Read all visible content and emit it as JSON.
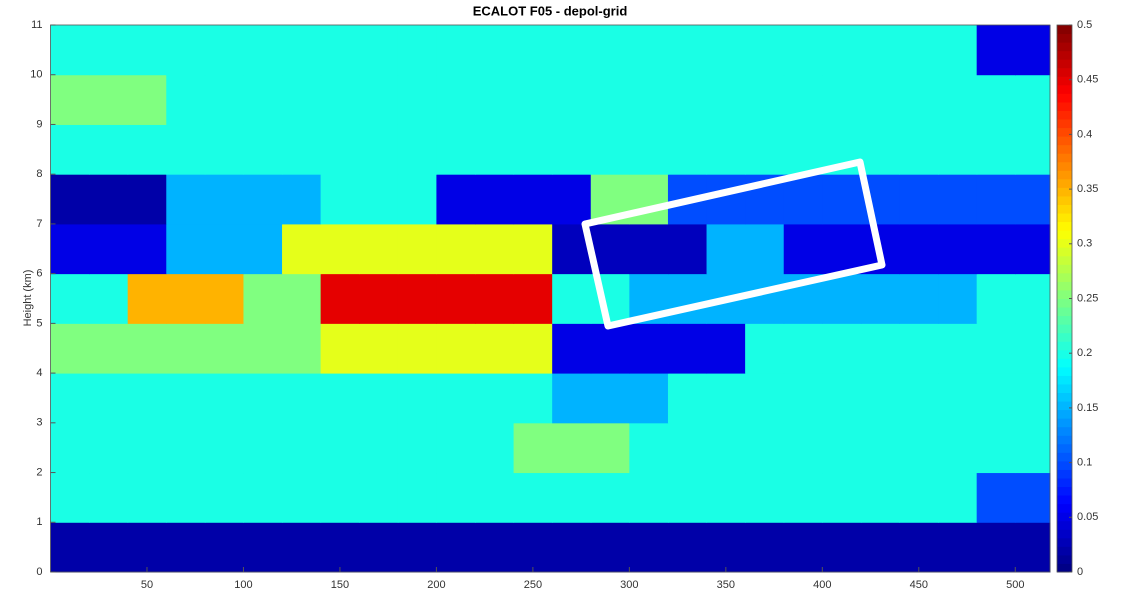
{
  "chart_data": {
    "type": "heatmap",
    "title": "ECALOT F05 - depol-grid",
    "y_label": "Height (km)",
    "colormap": "jet",
    "xbins": [
      0,
      20,
      40,
      60,
      80,
      100,
      120,
      140,
      160,
      180,
      200,
      220,
      240,
      260,
      280,
      300,
      320,
      340,
      360,
      380,
      400,
      420,
      440,
      460,
      480,
      500,
      518
    ],
    "ybins": [
      0,
      1,
      2,
      3,
      4,
      5,
      6,
      7,
      8,
      9,
      10,
      11
    ],
    "values": [
      [
        0.02,
        0.02,
        0.02,
        0.02,
        0.02,
        0.02,
        0.02,
        0.02,
        0.02,
        0.02,
        0.02,
        0.02,
        0.02,
        0.02,
        0.02,
        0.02,
        0.02,
        0.02,
        0.02,
        0.02,
        0.02,
        0.02,
        0.02,
        0.02,
        0.02,
        0.02
      ],
      [
        0.2,
        0.2,
        0.2,
        0.2,
        0.2,
        0.2,
        0.2,
        0.2,
        0.2,
        0.2,
        0.2,
        0.2,
        0.2,
        0.2,
        0.2,
        0.2,
        0.2,
        0.2,
        0.2,
        0.2,
        0.2,
        0.2,
        0.2,
        0.2,
        0.1,
        0.1
      ],
      [
        0.2,
        0.2,
        0.2,
        0.2,
        0.2,
        0.2,
        0.2,
        0.2,
        0.2,
        0.2,
        0.2,
        0.2,
        0.25,
        0.25,
        0.25,
        0.2,
        0.2,
        0.2,
        0.2,
        0.2,
        0.2,
        0.2,
        0.2,
        0.2,
        0.2,
        0.2
      ],
      [
        0.2,
        0.2,
        0.2,
        0.2,
        0.2,
        0.2,
        0.2,
        0.2,
        0.2,
        0.2,
        0.2,
        0.2,
        0.2,
        0.15,
        0.15,
        0.15,
        0.2,
        0.2,
        0.2,
        0.2,
        0.2,
        0.2,
        0.2,
        0.2,
        0.2,
        0.2
      ],
      [
        0.25,
        0.25,
        0.25,
        0.25,
        0.25,
        0.25,
        0.25,
        0.3,
        0.3,
        0.3,
        0.3,
        0.3,
        0.3,
        0.05,
        0.05,
        0.05,
        0.05,
        0.05,
        0.2,
        0.2,
        0.2,
        0.2,
        0.2,
        0.2,
        0.2,
        0.2
      ],
      [
        0.2,
        0.2,
        0.35,
        0.35,
        0.35,
        0.25,
        0.25,
        0.45,
        0.45,
        0.45,
        0.45,
        0.45,
        0.45,
        0.2,
        0.2,
        0.15,
        0.15,
        0.15,
        0.15,
        0.15,
        0.15,
        0.15,
        0.15,
        0.15,
        0.2,
        0.2
      ],
      [
        0.05,
        0.05,
        0.05,
        0.15,
        0.15,
        0.15,
        0.3,
        0.3,
        0.3,
        0.3,
        0.3,
        0.3,
        0.3,
        0.03,
        0.03,
        0.03,
        0.03,
        0.15,
        0.15,
        0.05,
        0.05,
        0.05,
        0.05,
        0.05,
        0.05,
        0.05
      ],
      [
        0.02,
        0.02,
        0.02,
        0.15,
        0.15,
        0.15,
        0.15,
        0.2,
        0.2,
        0.2,
        0.05,
        0.05,
        0.05,
        0.05,
        0.25,
        0.25,
        0.1,
        0.1,
        0.1,
        0.1,
        0.1,
        0.1,
        0.1,
        0.1,
        0.1,
        0.1
      ],
      [
        0.2,
        0.2,
        0.2,
        0.2,
        0.2,
        0.2,
        0.2,
        0.2,
        0.2,
        0.2,
        0.2,
        0.2,
        0.2,
        0.2,
        0.2,
        0.2,
        0.2,
        0.2,
        0.2,
        0.2,
        0.2,
        0.2,
        0.2,
        0.2,
        0.2,
        0.2
      ],
      [
        0.25,
        0.25,
        0.25,
        0.2,
        0.2,
        0.2,
        0.2,
        0.2,
        0.2,
        0.2,
        0.2,
        0.2,
        0.2,
        0.2,
        0.2,
        0.2,
        0.2,
        0.2,
        0.2,
        0.2,
        0.2,
        0.2,
        0.2,
        0.2,
        0.2,
        0.2
      ],
      [
        0.2,
        0.2,
        0.2,
        0.2,
        0.2,
        0.2,
        0.2,
        0.2,
        0.2,
        0.2,
        0.2,
        0.2,
        0.2,
        0.2,
        0.2,
        0.2,
        0.2,
        0.2,
        0.2,
        0.2,
        0.2,
        0.2,
        0.2,
        0.2,
        0.05,
        0.05
      ]
    ],
    "xlim": [
      0,
      518
    ],
    "ylim": [
      0,
      11
    ],
    "xticks": [
      50,
      100,
      150,
      200,
      250,
      300,
      350,
      400,
      450,
      500
    ],
    "yticks": [
      0,
      1,
      2,
      3,
      4,
      5,
      6,
      7,
      8,
      9,
      10,
      11
    ],
    "zlim": [
      0,
      0.5
    ],
    "zticks": [
      0,
      0.05,
      0.1,
      0.15,
      0.2,
      0.25,
      0.3,
      0.35,
      0.4,
      0.45,
      0.5
    ]
  }
}
